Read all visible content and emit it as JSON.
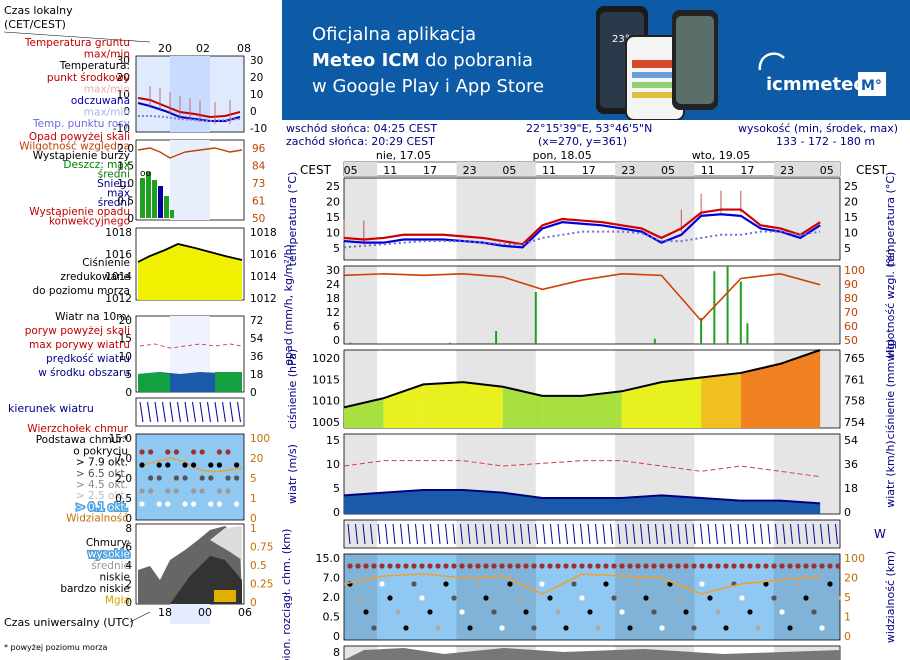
{
  "legend": {
    "time_local_lines": [
      "Czas lokalny",
      "(CET/CEST)"
    ],
    "time_local_ticks": [
      "20",
      "02",
      "08"
    ],
    "temp_labels": [
      {
        "text": "Temperatura gruntu",
        "color": "#c00000"
      },
      {
        "text": "max/min",
        "color": "#c00000"
      },
      {
        "text": "Temperatura:",
        "color": "#000000"
      },
      {
        "text": "punkt środkowy",
        "color": "#c00000"
      },
      {
        "text": "max/min",
        "color": "#e8b0b0"
      },
      {
        "text": "odczuwana",
        "color": "#0000aa"
      },
      {
        "text": "max/min",
        "color": "#b0b0e8"
      },
      {
        "text": "Temp. punktu rosy",
        "color": "#6a6ae0"
      }
    ],
    "temp_ticks": [
      "30",
      "20",
      "10",
      "0",
      "-10"
    ],
    "precip_labels": [
      {
        "text": "Opad powyżej skali",
        "color": "#c00000"
      },
      {
        "text": "Wilgotność względna",
        "color": "#c04000"
      },
      {
        "text": "Wystąpienie burzy",
        "color": "#000000"
      },
      {
        "text": "Deszcz: max",
        "color": "#008000"
      },
      {
        "text": "średni",
        "color": "#008000"
      },
      {
        "text": "Śnieg:",
        "color": "#000088"
      },
      {
        "text": "max",
        "color": "#000088"
      },
      {
        "text": "średni",
        "color": "#000088"
      },
      {
        "text": "Wystąpienie opadu",
        "color": "#c00000"
      },
      {
        "text": "konwekcyjnego",
        "color": "#c00000"
      }
    ],
    "precip_left_ticks": [
      "2.0",
      "1.5",
      "1.0",
      "0.5",
      "0"
    ],
    "precip_right_ticks": [
      "96",
      "84",
      "73",
      "61",
      "50"
    ],
    "pressure_labels": [
      "Ciśnienie",
      "zredukowane",
      "do poziomu morza"
    ],
    "pressure_left_ticks": [
      "1018",
      "1016",
      "1014",
      "1012"
    ],
    "pressure_right_ticks": [
      "1018",
      "1016",
      "1014",
      "1012"
    ],
    "wind_labels": [
      {
        "text": "Wiatr na 10m:",
        "color": "#000000"
      },
      {
        "text": "poryw powyżej skali",
        "color": "#c00000"
      },
      {
        "text": "max porywy wiatru",
        "color": "#c00000"
      },
      {
        "text": "prędkość wiatru",
        "color": "#000088"
      },
      {
        "text": "w środku obszaru",
        "color": "#000088"
      }
    ],
    "wind_left_ticks": [
      "20",
      "15",
      "10",
      "5",
      "0"
    ],
    "wind_right_ticks": [
      "72",
      "54",
      "36",
      "18",
      "0"
    ],
    "wind_dir_label": "kierunek wiatru",
    "cloud_labels": [
      {
        "text": "Wierzchołek chmur",
        "color": "#c00000"
      },
      {
        "text": "Podstawa chmur*",
        "color": "#000000"
      },
      {
        "text": "o pokryciu",
        "color": "#000000"
      },
      {
        "text": "> 7.9 okt.",
        "color": "#000000"
      },
      {
        "text": "> 6.5 okt.",
        "color": "#555555"
      },
      {
        "text": "> 4.5 okt.",
        "color": "#888888"
      },
      {
        "text": "> 2.5 okt.",
        "color": "#bbbbbb"
      },
      {
        "text": "> 0.1 okt.",
        "color": "#ffffff"
      },
      {
        "text": "Widzialność",
        "color": "#c07000"
      }
    ],
    "cloud_left_ticks": [
      "15.0",
      "7.0",
      "2.0",
      "0.5",
      "0"
    ],
    "cloud_right_ticks": [
      "100",
      "20",
      "5",
      "1",
      "0"
    ],
    "chmury_labels": [
      {
        "text": "Chmury:",
        "color": "#000000"
      },
      {
        "text": "wysokie",
        "color": "#ffffff"
      },
      {
        "text": "średnie",
        "color": "#999999"
      },
      {
        "text": "niskie",
        "color": "#000000"
      },
      {
        "text": "bardzo niskie",
        "color": "#000000"
      },
      {
        "text": "Mgła",
        "color": "#d6a000"
      }
    ],
    "chmury_left_ticks": [
      "8",
      "6",
      "4",
      "2",
      "0"
    ],
    "chmury_right_ticks": [
      "1",
      "0.75",
      "0.5",
      "0.25",
      "0"
    ],
    "utc_label": "Czas uniwersalny (UTC)",
    "utc_ticks": [
      "18",
      "00",
      "06"
    ],
    "footnote": "* powyżej poziomu morza"
  },
  "banner": {
    "line1": "Oficjalna aplikacja",
    "line2_bold": "Meteo ICM",
    "line2_rest": " do pobrania",
    "line3": "w Google Play i App Store",
    "logo_text": "icmmeteo",
    "logo_badge": "M°",
    "phone_temp": "23°"
  },
  "header": {
    "sunrise": "wschód słońca: 04:25 CEST",
    "sunset": "zachód słońca: 20:29 CEST",
    "coords": "22°15'39\"E, 53°46'5\"N",
    "grid": "(x=270,  y=361)",
    "height_label": "wysokość (min, środek, max)",
    "height_values": "133 - 172 - 180 m",
    "days": [
      "nie, 17.05",
      "pon, 18.05",
      "wto, 19.05"
    ],
    "tz_label": "CEST",
    "hour_ticks": [
      "05",
      "11",
      "17",
      "23",
      "05",
      "11",
      "17",
      "23",
      "05",
      "11",
      "17",
      "23",
      "05"
    ]
  },
  "axes": {
    "temp_left_label": "temperatura (°C)",
    "temp_right_label": "temperatura (°C)",
    "temp_ticks": [
      "25",
      "20",
      "15",
      "10",
      "5"
    ],
    "precip_left_label": "opad (mm/h, kg/m²/h)",
    "precip_right_label": "wilgotność wzgl. (%)",
    "precip_left_ticks": [
      "30",
      "24",
      "18",
      "12",
      "6",
      "0"
    ],
    "precip_right_ticks": [
      "100",
      "90",
      "80",
      "70",
      "60",
      "50"
    ],
    "pressure_left_label": "ciśnienie (hPa)",
    "pressure_right_label": "ciśnienie (mm Hg)",
    "pressure_left_ticks": [
      "1020",
      "1015",
      "1010",
      "1005"
    ],
    "pressure_right_ticks": [
      "765",
      "761",
      "758",
      "754"
    ],
    "wind_left_label": "wiatr (m/s)",
    "wind_right_label": "wiatr (km/h)",
    "wind_left_ticks": [
      "15",
      "10",
      "5",
      "0"
    ],
    "wind_right_ticks": [
      "54",
      "36",
      "18",
      "0"
    ],
    "cloud_left_label": "pion. rozciągł. chm. (km)",
    "cloud_right_label": "widzialność (km)",
    "cloud_left_ticks": [
      "15.0",
      "7.0",
      "2.0",
      "0.5",
      "0"
    ],
    "cloud_right_ticks": [
      "100",
      "20",
      "5",
      "1",
      "0"
    ],
    "bottom_tick": "8"
  },
  "chart_data": [
    {
      "type": "line",
      "title": "",
      "xlabel": "",
      "ylabel": "temperatura (°C)",
      "x_hours_from_start": [
        0,
        3,
        6,
        9,
        12,
        15,
        18,
        21,
        24,
        27,
        30,
        33,
        36,
        39,
        42,
        45,
        48,
        51,
        54,
        57,
        60,
        63,
        66,
        69,
        72
      ],
      "ylim": [
        2,
        28
      ],
      "series": [
        {
          "name": "punkt środkowy",
          "color": "#d00000",
          "values": [
            9,
            8.5,
            9,
            10,
            10,
            10,
            9.5,
            9,
            8,
            7,
            13,
            15,
            14.5,
            14,
            13,
            12,
            9,
            12,
            17,
            18,
            18,
            13,
            12,
            10,
            14
          ]
        },
        {
          "name": "odczuwana",
          "color": "#0000dd",
          "values": [
            8,
            7.5,
            7.5,
            8.5,
            8.5,
            8.5,
            8,
            7.5,
            6.5,
            6,
            12,
            14,
            13.5,
            13,
            12,
            11,
            7.5,
            10,
            16,
            16.5,
            16,
            12,
            11,
            9,
            13
          ]
        },
        {
          "name": "Temp. punktu rosy",
          "color": "#6a6ae0",
          "values": [
            6,
            6.5,
            7,
            7.5,
            8,
            8,
            8,
            7.5,
            7,
            7,
            9,
            10,
            11,
            11,
            11,
            10.5,
            8,
            8,
            9,
            10,
            10,
            11,
            11,
            10,
            11
          ]
        }
      ]
    },
    {
      "type": "bar",
      "ylabel": "opad (mm/h, kg/m²/h)",
      "ylim": [
        0,
        30
      ],
      "x_hours_from_start": [
        1,
        16,
        23,
        29,
        47,
        54,
        56,
        58,
        60,
        61
      ],
      "values": [
        0.5,
        0.5,
        5,
        20,
        2,
        10,
        28,
        30,
        24,
        8
      ],
      "humidity": {
        "name": "wilgotność wzgl. (%)",
        "color": "#d04000",
        "ylim": [
          50,
          100
        ],
        "x_hours_from_start": [
          0,
          6,
          12,
          18,
          24,
          30,
          36,
          42,
          48,
          54,
          60,
          66,
          72
        ],
        "values": [
          94,
          95,
          94,
          95,
          93,
          85,
          91,
          95,
          94,
          65,
          92,
          95,
          88
        ]
      }
    },
    {
      "type": "line",
      "ylabel": "ciśnienie (hPa)",
      "ylim": [
        1005,
        1022
      ],
      "x_hours_from_start": [
        0,
        6,
        12,
        18,
        24,
        30,
        36,
        42,
        48,
        54,
        60,
        66,
        72
      ],
      "values": [
        1009.5,
        1011.5,
        1014.5,
        1015,
        1014,
        1012,
        1012,
        1013,
        1015,
        1016,
        1017,
        1019,
        1022
      ]
    },
    {
      "type": "area",
      "ylabel": "wiatr (m/s)",
      "ylim": [
        0,
        15
      ],
      "x_hours_from_start": [
        0,
        6,
        12,
        18,
        24,
        30,
        36,
        42,
        48,
        54,
        60,
        66,
        72
      ],
      "series": [
        {
          "name": "prędkość wiatru",
          "values": [
            3.5,
            4,
            4.5,
            4.5,
            4,
            3,
            3,
            3,
            3.5,
            3,
            2.5,
            2.5,
            2
          ]
        },
        {
          "name": "max porywy wiatru",
          "values": [
            9,
            10,
            10,
            10,
            9,
            9.5,
            10,
            10,
            9,
            8,
            9,
            8,
            7
          ]
        }
      ]
    }
  ]
}
